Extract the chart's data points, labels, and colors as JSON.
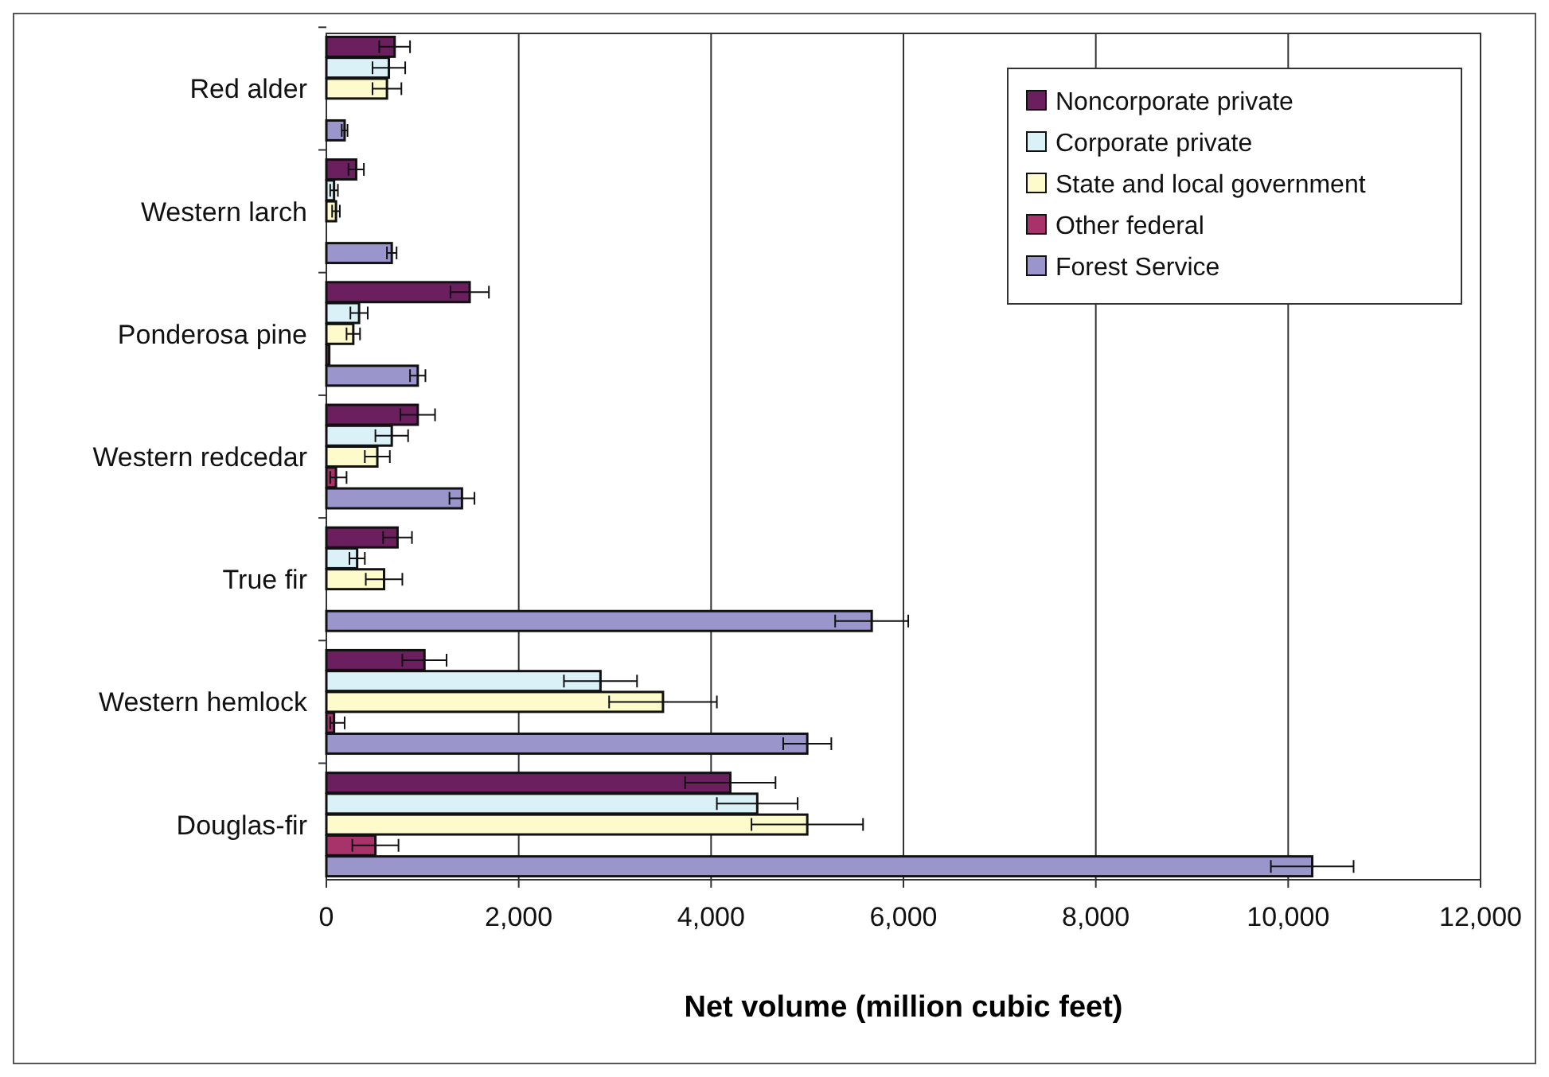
{
  "chart_data": {
    "type": "bar",
    "orientation": "horizontal",
    "xlabel": "Net volume (million cubic feet)",
    "categories": [
      "Red alder",
      "Western larch",
      "Ponderosa pine",
      "Western redcedar",
      "True fir",
      "Western hemlock",
      "Douglas-fir"
    ],
    "series": [
      {
        "name": "Noncorporate private",
        "color": "#6b1f5e",
        "values": [
          710,
          310,
          1490,
          950,
          740,
          1020,
          4200
        ],
        "errors": [
          160,
          80,
          200,
          180,
          150,
          230,
          470
        ]
      },
      {
        "name": "Corporate private",
        "color": "#d9f1f7",
        "values": [
          650,
          80,
          340,
          680,
          320,
          2850,
          4480
        ],
        "errors": [
          170,
          40,
          90,
          170,
          80,
          380,
          420
        ]
      },
      {
        "name": "State and local government",
        "color": "#fdfbcb",
        "values": [
          630,
          100,
          280,
          530,
          600,
          3500,
          5000
        ],
        "errors": [
          150,
          40,
          70,
          130,
          190,
          560,
          580
        ]
      },
      {
        "name": "Other federal",
        "color": "#a8336b",
        "values": [
          0,
          0,
          30,
          100,
          0,
          80,
          510
        ],
        "errors": [
          null,
          null,
          null,
          [
            40,
            210
          ],
          null,
          [
            40,
            190
          ],
          240
        ]
      },
      {
        "name": "Forest Service",
        "color": "#9a96cc",
        "values": [
          190,
          680,
          950,
          1410,
          5670,
          5000,
          10250
        ],
        "errors": [
          30,
          50,
          80,
          130,
          380,
          250,
          430
        ]
      }
    ],
    "xlim": [
      0,
      12000
    ],
    "xticks": [
      {
        "value": 0,
        "label": "0"
      },
      {
        "value": 2000,
        "label": "2,000"
      },
      {
        "value": 4000,
        "label": "4,000"
      },
      {
        "value": 6000,
        "label": "6,000"
      },
      {
        "value": 8000,
        "label": "8,000"
      },
      {
        "value": 10000,
        "label": "10,000"
      },
      {
        "value": 12000,
        "label": "12,000"
      }
    ],
    "grid": "x",
    "legend": "top right"
  }
}
